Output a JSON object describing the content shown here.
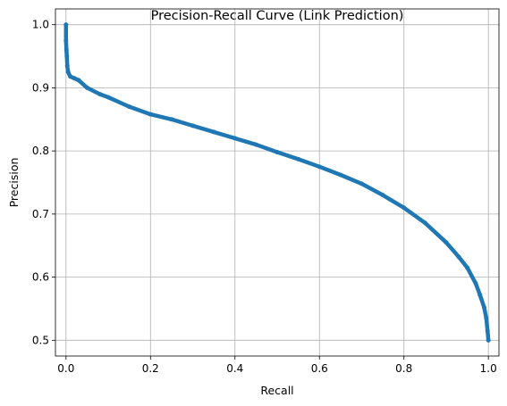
{
  "chart_data": {
    "type": "line",
    "title": "Precision-Recall Curve (Link Prediction)",
    "xlabel": "Recall",
    "ylabel": "Precision",
    "xlim": [
      -0.025,
      1.025
    ],
    "ylim": [
      0.475,
      1.025
    ],
    "xticks": [
      0.0,
      0.2,
      0.4,
      0.6,
      0.8,
      1.0
    ],
    "xtick_labels": [
      "0.0",
      "0.2",
      "0.4",
      "0.6",
      "0.8",
      "1.0"
    ],
    "yticks": [
      0.5,
      0.6,
      0.7,
      0.8,
      0.9,
      1.0
    ],
    "ytick_labels": [
      "0.5",
      "0.6",
      "0.7",
      "0.8",
      "0.9",
      "1.0"
    ],
    "grid": true,
    "marker": "dot",
    "series": [
      {
        "color": "#1f77b4",
        "x": [
          0.0,
          0.0,
          0.001,
          0.002,
          0.003,
          0.005,
          0.01,
          0.02,
          0.03,
          0.05,
          0.08,
          0.1,
          0.15,
          0.2,
          0.25,
          0.3,
          0.35,
          0.4,
          0.45,
          0.5,
          0.55,
          0.6,
          0.65,
          0.7,
          0.75,
          0.8,
          0.85,
          0.9,
          0.93,
          0.95,
          0.97,
          0.98,
          0.99,
          0.995,
          0.998,
          1.0
        ],
        "y": [
          1.0,
          0.975,
          0.96,
          0.95,
          0.935,
          0.925,
          0.918,
          0.915,
          0.912,
          0.9,
          0.89,
          0.885,
          0.87,
          0.858,
          0.85,
          0.84,
          0.83,
          0.82,
          0.81,
          0.798,
          0.787,
          0.775,
          0.762,
          0.748,
          0.73,
          0.71,
          0.686,
          0.655,
          0.632,
          0.615,
          0.59,
          0.572,
          0.552,
          0.535,
          0.515,
          0.5
        ]
      }
    ]
  }
}
